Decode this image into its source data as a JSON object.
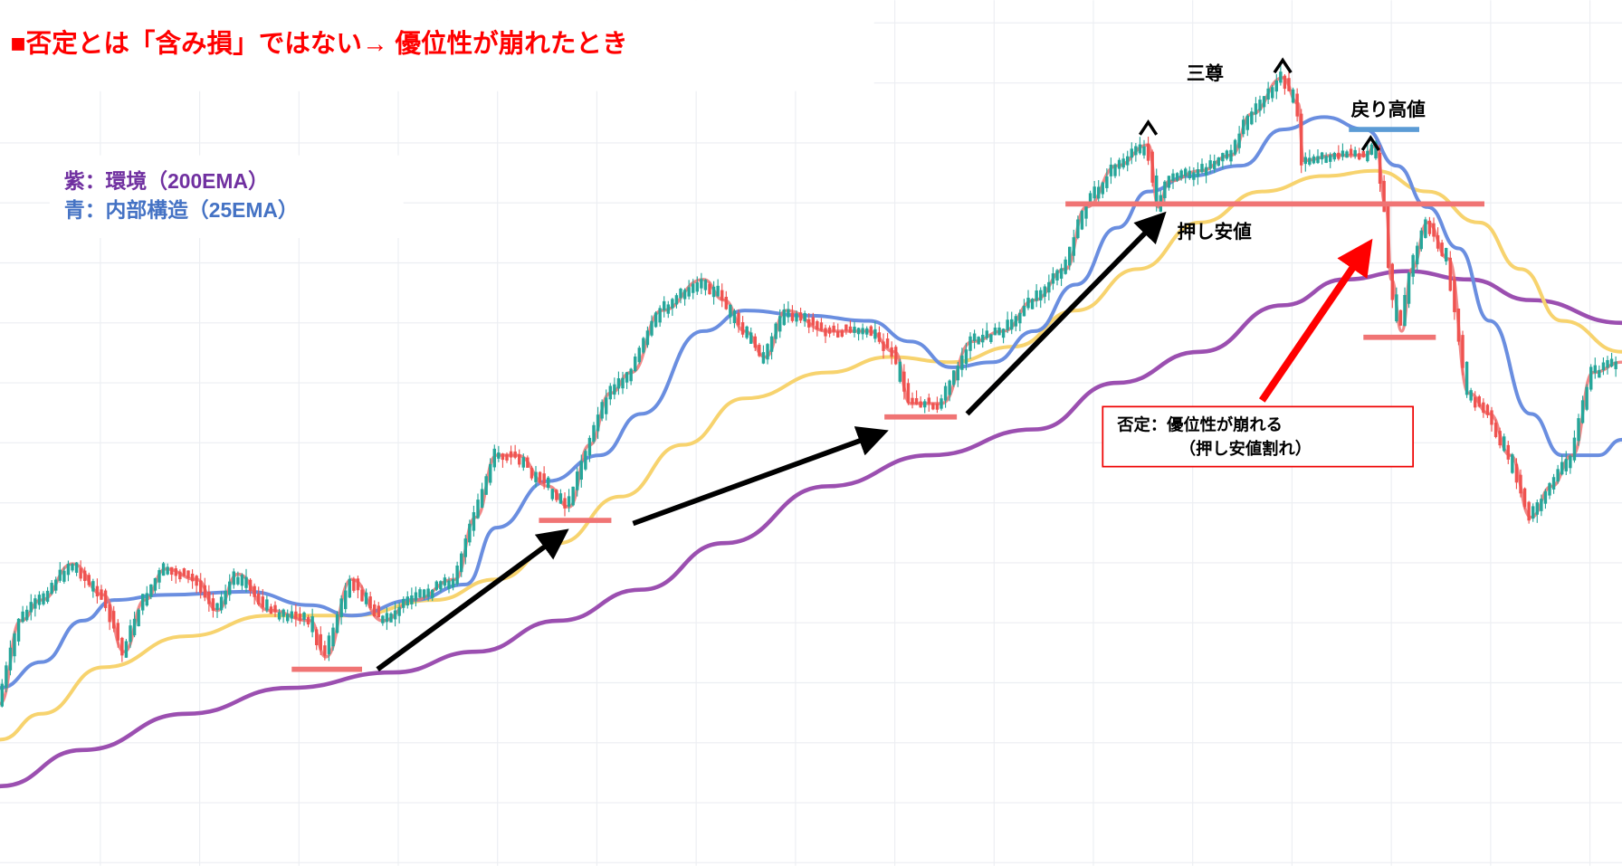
{
  "header": {
    "title": "■否定とは「含み損」ではない→ 優位性が崩れたとき"
  },
  "legend": {
    "purple": "紫：環境（200EMA）",
    "blue": "青：内部構造（25EMA）"
  },
  "annotations": {
    "head_and_shoulders": "三尊",
    "lower_high": "戻り高値",
    "higher_low": "押し安値"
  },
  "callout": {
    "line1": "否定：優位性が崩れる",
    "line2": "（押し安値割れ）"
  }
}
